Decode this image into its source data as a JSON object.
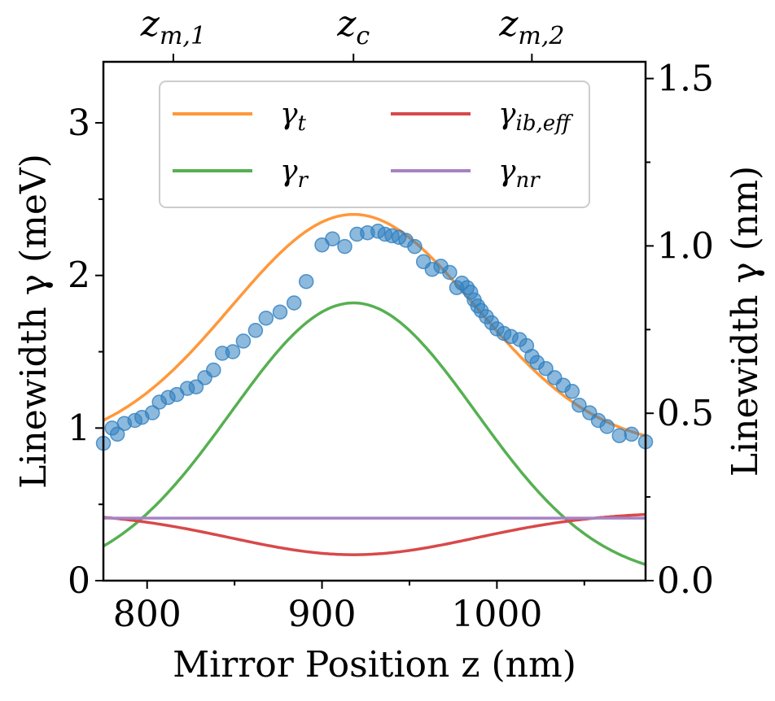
{
  "chart_data": {
    "type": "line",
    "xlabel": "Mirror Position z (nm)",
    "ylabel_left": "Linewidth γ (meV)",
    "ylabel_right": "Linewidth γ (nm)",
    "xlim": [
      775,
      1085
    ],
    "ylim_left": [
      0,
      3.4
    ],
    "ylim_right": [
      0,
      1.55
    ],
    "x_ticks": [
      800,
      900,
      1000
    ],
    "x_tick_labels": [
      "800",
      "900",
      "1000"
    ],
    "y_left_ticks": [
      0,
      1,
      2,
      3
    ],
    "y_left_tick_labels": [
      "0",
      "1",
      "2",
      "3"
    ],
    "y_right_ticks": [
      0.0,
      0.5,
      1.0,
      1.5
    ],
    "y_right_tick_labels": [
      "0.0",
      "0.5",
      "1.0",
      "1.5"
    ],
    "top_ticks": [
      {
        "x": 815,
        "label": "z_m,1"
      },
      {
        "x": 918,
        "label": "z_c"
      },
      {
        "x": 1020,
        "label": "z_m,2"
      }
    ],
    "grid": false,
    "legend_position": "top-center",
    "colors": {
      "gamma_t": "#ff983a",
      "gamma_r": "#56b051",
      "gamma_ib": "#d8494a",
      "gamma_nr": "#a682c4",
      "points": "#2f7fc0"
    },
    "series": [
      {
        "name": "γt",
        "key": "gamma_t",
        "form": "t"
      },
      {
        "name": "γr",
        "key": "gamma_r",
        "form": "r"
      },
      {
        "name": "γib,eff",
        "key": "gamma_ib",
        "form": "ib"
      },
      {
        "name": "γnr",
        "key": "gamma_nr",
        "form": "nr"
      }
    ],
    "model": {
      "center": 918,
      "sigma": 70,
      "r_amp": 1.82,
      "ib_base": 0.17,
      "ib_amp": 0.28,
      "nr": 0.41
    },
    "scatter": {
      "x": [
        775,
        780,
        783,
        787,
        793,
        797,
        803,
        807,
        812,
        817,
        823,
        828,
        833,
        838,
        843,
        849,
        855,
        862,
        868,
        876,
        884,
        891,
        900,
        906,
        913,
        920,
        926,
        932,
        936,
        940,
        944,
        948,
        953,
        958,
        963,
        968,
        973,
        977,
        980,
        983,
        985,
        987,
        989,
        991,
        994,
        997,
        1000,
        1004,
        1008,
        1013,
        1017,
        1020,
        1023,
        1028,
        1033,
        1038,
        1043,
        1047,
        1053,
        1058,
        1063,
        1070,
        1077,
        1085
      ],
      "y": [
        0.9,
        1.0,
        0.96,
        1.03,
        1.05,
        1.07,
        1.1,
        1.17,
        1.2,
        1.22,
        1.26,
        1.27,
        1.33,
        1.38,
        1.49,
        1.5,
        1.57,
        1.64,
        1.72,
        1.76,
        1.82,
        1.96,
        2.2,
        2.24,
        2.19,
        2.27,
        2.28,
        2.29,
        2.27,
        2.26,
        2.25,
        2.23,
        2.19,
        2.09,
        2.04,
        2.06,
        2.02,
        1.92,
        1.95,
        1.92,
        1.89,
        1.84,
        1.8,
        1.77,
        1.73,
        1.69,
        1.65,
        1.62,
        1.6,
        1.58,
        1.54,
        1.47,
        1.43,
        1.39,
        1.33,
        1.28,
        1.24,
        1.15,
        1.1,
        1.05,
        1.01,
        0.95,
        0.96,
        0.91
      ]
    },
    "legend": [
      {
        "key": "gamma_t",
        "base": "γ",
        "sub": "t"
      },
      {
        "key": "gamma_ib",
        "base": "γ",
        "sub": "ib,eff"
      },
      {
        "key": "gamma_r",
        "base": "γ",
        "sub": "r"
      },
      {
        "key": "gamma_nr",
        "base": "γ",
        "sub": "nr"
      }
    ]
  }
}
